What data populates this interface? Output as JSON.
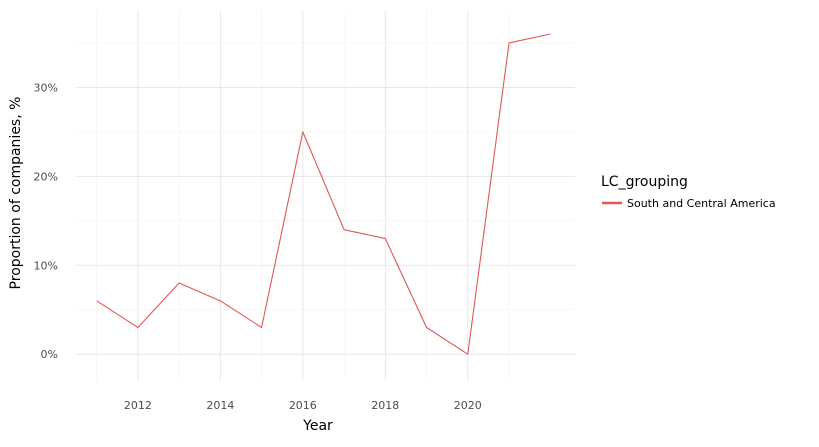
{
  "chart_data": {
    "type": "line",
    "title": "",
    "xlabel": "Year",
    "ylabel": "Proportion of companies, %",
    "legend": {
      "title": "LC_grouping",
      "placement": "right"
    },
    "x": [
      2011,
      2012,
      2013,
      2014,
      2015,
      2016,
      2017,
      2018,
      2019,
      2020,
      2021,
      2022
    ],
    "series": [
      {
        "name": "South and Central America",
        "color": "#e15759",
        "values": [
          6,
          3,
          8,
          6,
          3,
          25,
          14,
          13,
          3,
          0,
          35,
          36
        ]
      }
    ],
    "x_ticks": [
      2012,
      2014,
      2016,
      2018,
      2020
    ],
    "x_tick_labels": [
      "2012",
      "2014",
      "2016",
      "2018",
      "2020"
    ],
    "y_ticks": [
      0,
      10,
      20,
      30
    ],
    "y_tick_labels": [
      "0%",
      "10%",
      "20%",
      "30%"
    ],
    "xlim": [
      2010.5,
      2022.6
    ],
    "ylim": [
      -2.9,
      38.7
    ],
    "grid": true
  }
}
